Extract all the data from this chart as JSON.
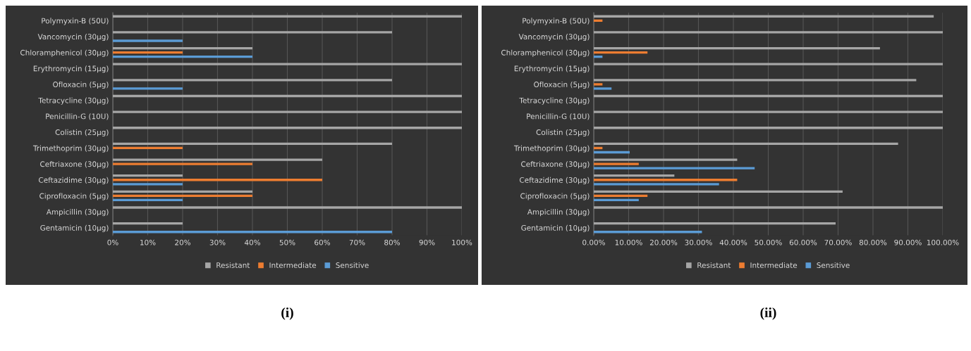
{
  "chart_data": [
    {
      "type": "bar",
      "orientation": "horizontal",
      "title": "(i)",
      "categories": [
        "Polymyxin-B (50U)",
        "Vancomycin (30µg)",
        "Chloramphenicol (30µg)",
        "Erythromycin (15µg)",
        "Ofloxacin (5µg)",
        "Tetracycline (30µg)",
        "Penicillin-G (10U)",
        "Colistin (25µg)",
        "Trimethoprim (30µg)",
        "Ceftriaxone (30µg)",
        "Ceftazidime (30µg)",
        "Ciprofloxacin (5µg)",
        "Ampicillin (30µg)",
        "Gentamicin (10µg)"
      ],
      "series": [
        {
          "name": "Resistant",
          "color": "#a6a6a6",
          "values": [
            100,
            80,
            40,
            100,
            80,
            100,
            100,
            100,
            80,
            60,
            20,
            40,
            100,
            20
          ]
        },
        {
          "name": "Intermediate",
          "color": "#ed7d31",
          "values": [
            0,
            0,
            20,
            0,
            0,
            0,
            0,
            0,
            20,
            40,
            60,
            40,
            0,
            0
          ]
        },
        {
          "name": "Sensitive",
          "color": "#5b9bd5",
          "values": [
            0,
            20,
            40,
            0,
            20,
            0,
            0,
            0,
            0,
            0,
            20,
            20,
            0,
            80
          ]
        }
      ],
      "xlim": [
        0,
        100
      ],
      "xticks": [
        {
          "value": 0,
          "label": "0%"
        },
        {
          "value": 10,
          "label": "10%"
        },
        {
          "value": 20,
          "label": "20%"
        },
        {
          "value": 30,
          "label": "30%"
        },
        {
          "value": 40,
          "label": "40%"
        },
        {
          "value": 50,
          "label": "50%"
        },
        {
          "value": 60,
          "label": "60%"
        },
        {
          "value": 70,
          "label": "70%"
        },
        {
          "value": 80,
          "label": "80%"
        },
        {
          "value": 90,
          "label": "90%"
        },
        {
          "value": 100,
          "label": "100%"
        }
      ],
      "grid": "x",
      "legend": "bottom"
    },
    {
      "type": "bar",
      "orientation": "horizontal",
      "title": "(ii)",
      "categories": [
        "Polymyxin-B (50U)",
        "Vancomycin (30µg)",
        "Chloramphenicol (30µg)",
        "Erythromycin (15µg)",
        "Ofloxacin (5µg)",
        "Tetracycline (30µg)",
        "Penicillin-G (10U)",
        "Colistin (25µg)",
        "Trimethoprim (30µg)",
        "Ceftriaxone (30µg)",
        "Ceftazidime (30µg)",
        "Ciprofloxacin (5µg)",
        "Ampicillin (30µg)",
        "Gentamicin (10µg)"
      ],
      "series": [
        {
          "name": "Resistant",
          "color": "#a6a6a6",
          "values": [
            97.4,
            100,
            82.0,
            100,
            92.4,
            100,
            100,
            100,
            87.2,
            41.1,
            23.1,
            71.3,
            100,
            69.3
          ]
        },
        {
          "name": "Intermediate",
          "color": "#ed7d31",
          "values": [
            2.5,
            0,
            15.4,
            0,
            2.5,
            0,
            0,
            0,
            2.5,
            12.9,
            41.1,
            15.4,
            0,
            0
          ]
        },
        {
          "name": "Sensitive",
          "color": "#5b9bd5",
          "values": [
            0,
            0,
            2.5,
            0,
            5.1,
            0,
            0,
            0,
            10.3,
            46.1,
            35.9,
            12.9,
            0,
            31.0
          ]
        }
      ],
      "xlim": [
        0,
        100
      ],
      "xticks": [
        {
          "value": 0,
          "label": "0.00%"
        },
        {
          "value": 10,
          "label": "10.00%"
        },
        {
          "value": 20,
          "label": "20.00%"
        },
        {
          "value": 30,
          "label": "30.00%"
        },
        {
          "value": 40,
          "label": "40.00%"
        },
        {
          "value": 50,
          "label": "50.00%"
        },
        {
          "value": 60,
          "label": "60.00%"
        },
        {
          "value": 70,
          "label": "70.00%"
        },
        {
          "value": 80,
          "label": "80.00%"
        },
        {
          "value": 90,
          "label": "90.00%"
        },
        {
          "value": 100,
          "label": "100.00%"
        }
      ],
      "grid": "x",
      "legend": "bottom"
    }
  ]
}
